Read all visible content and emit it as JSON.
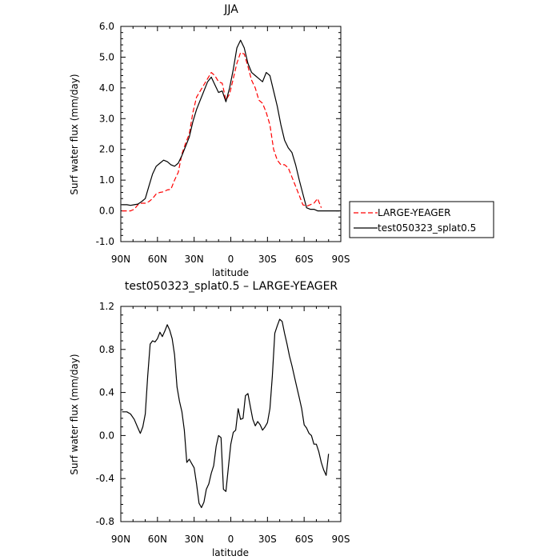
{
  "chart_data": [
    {
      "type": "line",
      "title": "JJA",
      "xlabel": "latitude",
      "ylabel": "Surf water flux (mm/day)",
      "xlim": [
        90,
        -90
      ],
      "ylim": [
        -1.0,
        6.0
      ],
      "x_ticks": [
        90,
        60,
        30,
        0,
        -30,
        -60,
        -90
      ],
      "x_tick_labels": [
        "90N",
        "60N",
        "30N",
        "0",
        "30S",
        "60S",
        "90S"
      ],
      "y_ticks": [
        -1.0,
        0.0,
        1.0,
        2.0,
        3.0,
        4.0,
        5.0,
        6.0
      ],
      "y_tick_labels": [
        "-1.0",
        "0.0",
        "1.0",
        "2.0",
        "3.0",
        "4.0",
        "5.0",
        "6.0"
      ],
      "legend_position": "right",
      "series": [
        {
          "name": "LARGE-YEAGER",
          "color": "#ff0000",
          "dash": "dashed",
          "x": [
            89,
            85,
            82,
            79,
            76,
            73,
            70,
            67,
            64,
            61,
            58,
            55,
            52,
            49,
            46,
            43,
            40,
            37,
            34,
            31,
            28,
            25,
            22,
            19,
            16,
            13,
            10,
            7,
            4,
            1,
            -2,
            -5,
            -8,
            -11,
            -14,
            -17,
            -20,
            -23,
            -26,
            -29,
            -32,
            -35,
            -38,
            -41,
            -44,
            -47,
            -50,
            -53,
            -56,
            -59,
            -62,
            -65,
            -68,
            -71,
            -74,
            -77,
            -80
          ],
          "y": [
            0.0,
            0.0,
            0.0,
            0.05,
            0.2,
            0.25,
            0.25,
            0.3,
            0.4,
            0.55,
            0.6,
            0.62,
            0.68,
            0.7,
            1.0,
            1.25,
            1.85,
            2.2,
            2.5,
            3.2,
            3.7,
            3.9,
            4.1,
            4.3,
            4.5,
            4.4,
            4.2,
            4.15,
            3.6,
            3.8,
            4.3,
            4.8,
            5.15,
            5.1,
            4.7,
            4.25,
            4.0,
            3.6,
            3.5,
            3.2,
            2.8,
            2.0,
            1.65,
            1.5,
            1.5,
            1.4,
            1.1,
            0.8,
            0.5,
            0.2,
            0.15,
            0.2,
            0.25,
            0.4,
            0.1,
            null,
            null
          ]
        },
        {
          "name": "test050323_splat0.5",
          "color": "#000000",
          "dash": "solid",
          "x": [
            89,
            85,
            82,
            79,
            76,
            73,
            70,
            67,
            64,
            61,
            58,
            55,
            52,
            49,
            46,
            43,
            40,
            37,
            34,
            31,
            28,
            25,
            22,
            19,
            16,
            13,
            10,
            7,
            4,
            1,
            -2,
            -5,
            -8,
            -11,
            -14,
            -17,
            -20,
            -23,
            -26,
            -29,
            -32,
            -35,
            -38,
            -41,
            -44,
            -47,
            -50,
            -53,
            -56,
            -59,
            -62,
            -65,
            -68,
            -71,
            -74,
            -77,
            -80,
            -83,
            -86,
            -89
          ],
          "y": [
            0.2,
            0.2,
            0.18,
            0.2,
            0.22,
            0.3,
            0.4,
            0.8,
            1.2,
            1.45,
            1.55,
            1.65,
            1.6,
            1.5,
            1.45,
            1.55,
            1.8,
            2.1,
            2.4,
            2.9,
            3.3,
            3.6,
            3.9,
            4.2,
            4.35,
            4.1,
            3.85,
            3.9,
            3.55,
            4.0,
            4.6,
            5.3,
            5.55,
            5.3,
            4.8,
            4.5,
            4.4,
            4.3,
            4.2,
            4.5,
            4.4,
            3.9,
            3.4,
            2.8,
            2.3,
            2.05,
            1.9,
            1.5,
            1.0,
            0.55,
            0.1,
            0.05,
            0.05,
            0.0,
            0.0,
            0.0,
            0.0,
            0.0,
            0.0,
            0.0
          ]
        }
      ]
    },
    {
      "type": "line",
      "title": "test050323_splat0.5 – LARGE-YEAGER",
      "xlabel": "latitude",
      "ylabel": "Surf water flux (mm/day)",
      "xlim": [
        90,
        -90
      ],
      "ylim": [
        -0.8,
        1.2
      ],
      "x_ticks": [
        90,
        60,
        30,
        0,
        -30,
        -60,
        -90
      ],
      "x_tick_labels": [
        "90N",
        "60N",
        "30N",
        "0",
        "30S",
        "60S",
        "90S"
      ],
      "y_ticks": [
        -0.8,
        -0.4,
        0.0,
        0.4,
        0.8,
        1.2
      ],
      "y_tick_labels": [
        "-0.8",
        "-0.4",
        "0.0",
        "0.4",
        "0.8",
        "1.2"
      ],
      "series": [
        {
          "color": "#000000",
          "dash": "solid",
          "x": [
            89,
            85,
            82,
            79,
            76,
            74,
            72,
            70,
            68,
            66,
            64,
            62,
            60,
            58,
            56,
            54,
            52,
            50,
            48,
            46,
            44,
            42,
            40,
            38,
            36,
            34,
            32,
            30,
            28,
            26,
            24,
            22,
            20,
            18,
            16,
            14,
            12,
            10,
            8,
            6,
            4,
            2,
            0,
            -2,
            -4,
            -6,
            -8,
            -10,
            -12,
            -14,
            -16,
            -18,
            -20,
            -22,
            -24,
            -26,
            -28,
            -30,
            -32,
            -34,
            -36,
            -38,
            -40,
            -42,
            -44,
            -46,
            -48,
            -50,
            -52,
            -54,
            -56,
            -58,
            -60,
            -62,
            -64,
            -66,
            -68,
            -70,
            -72,
            -74,
            -76,
            -78,
            -80
          ],
          "y": [
            0.22,
            0.22,
            0.2,
            0.15,
            0.07,
            0.02,
            0.08,
            0.2,
            0.55,
            0.85,
            0.88,
            0.87,
            0.9,
            0.96,
            0.92,
            0.97,
            1.03,
            0.98,
            0.9,
            0.75,
            0.45,
            0.32,
            0.22,
            0.05,
            -0.25,
            -0.22,
            -0.26,
            -0.3,
            -0.45,
            -0.63,
            -0.67,
            -0.62,
            -0.5,
            -0.45,
            -0.35,
            -0.28,
            -0.1,
            0.0,
            -0.02,
            -0.5,
            -0.52,
            -0.3,
            -0.08,
            0.03,
            0.05,
            0.25,
            0.15,
            0.16,
            0.37,
            0.39,
            0.27,
            0.15,
            0.09,
            0.13,
            0.1,
            0.05,
            0.08,
            0.12,
            0.25,
            0.55,
            0.95,
            1.02,
            1.08,
            1.06,
            0.95,
            0.85,
            0.74,
            0.65,
            0.55,
            0.45,
            0.35,
            0.25,
            0.1,
            0.07,
            0.02,
            0.0,
            -0.08,
            -0.08,
            -0.15,
            -0.25,
            -0.32,
            -0.37,
            -0.17
          ]
        }
      ]
    }
  ]
}
